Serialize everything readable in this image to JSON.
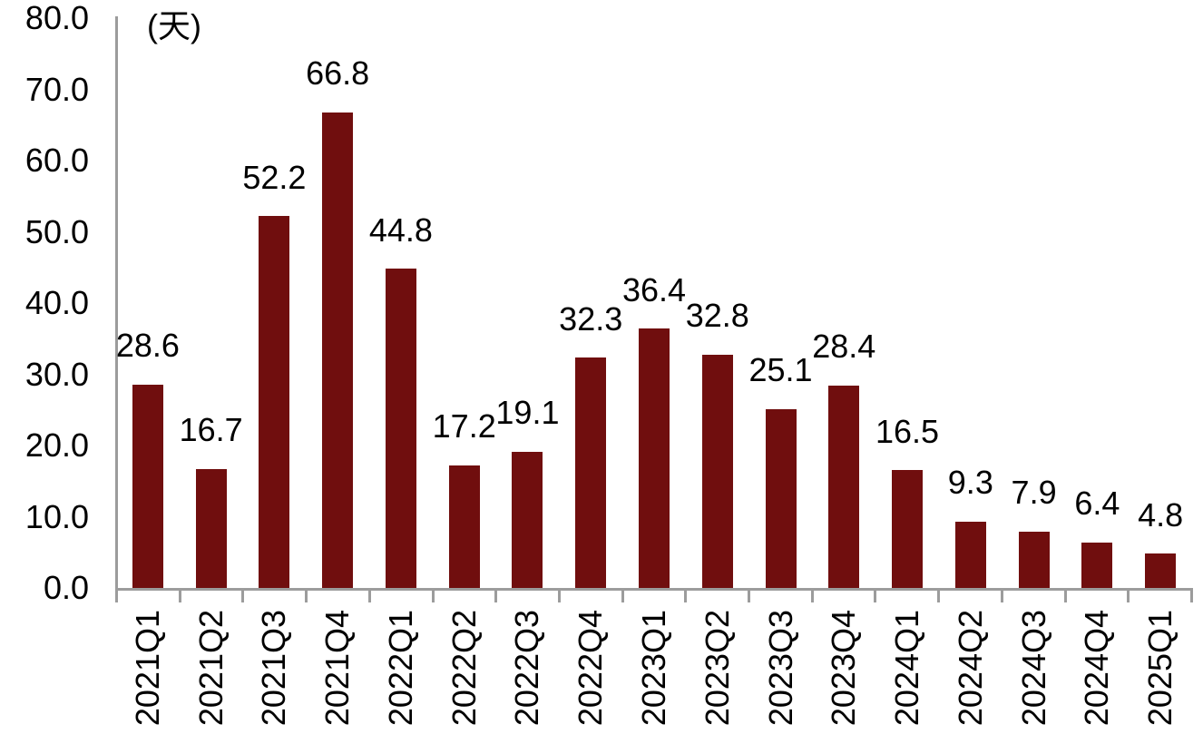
{
  "chart_data": {
    "type": "bar",
    "title": "",
    "unit_label": "(天)",
    "xlabel": "",
    "ylabel": "(天)",
    "ylim": [
      0,
      80
    ],
    "ytick_step": 10,
    "yticks": [
      "80.0",
      "70.0",
      "60.0",
      "50.0",
      "40.0",
      "30.0",
      "20.0",
      "10.0",
      "0.0"
    ],
    "grid": false,
    "legend": "none",
    "categories": [
      "2021Q1",
      "2021Q2",
      "2021Q3",
      "2021Q4",
      "2022Q1",
      "2022Q2",
      "2022Q3",
      "2022Q4",
      "2023Q1",
      "2023Q2",
      "2023Q3",
      "2023Q4",
      "2024Q1",
      "2024Q2",
      "2024Q3",
      "2024Q4",
      "2025Q1"
    ],
    "values": [
      28.6,
      16.7,
      52.2,
      66.8,
      44.8,
      17.2,
      19.1,
      32.3,
      36.4,
      32.8,
      25.1,
      28.4,
      16.5,
      9.3,
      7.9,
      6.4,
      4.8
    ],
    "data_labels": [
      "28.6",
      "16.7",
      "52.2",
      "66.8",
      "44.8",
      "17.2",
      "19.1",
      "32.3",
      "36.4",
      "32.8",
      "25.1",
      "28.4",
      "16.5",
      "9.3",
      "7.9",
      "6.4",
      "4.8"
    ],
    "colors": {
      "bar": "#700e0e",
      "axis": "#9c9c9c",
      "text": "#000000",
      "background": "#ffffff"
    }
  }
}
